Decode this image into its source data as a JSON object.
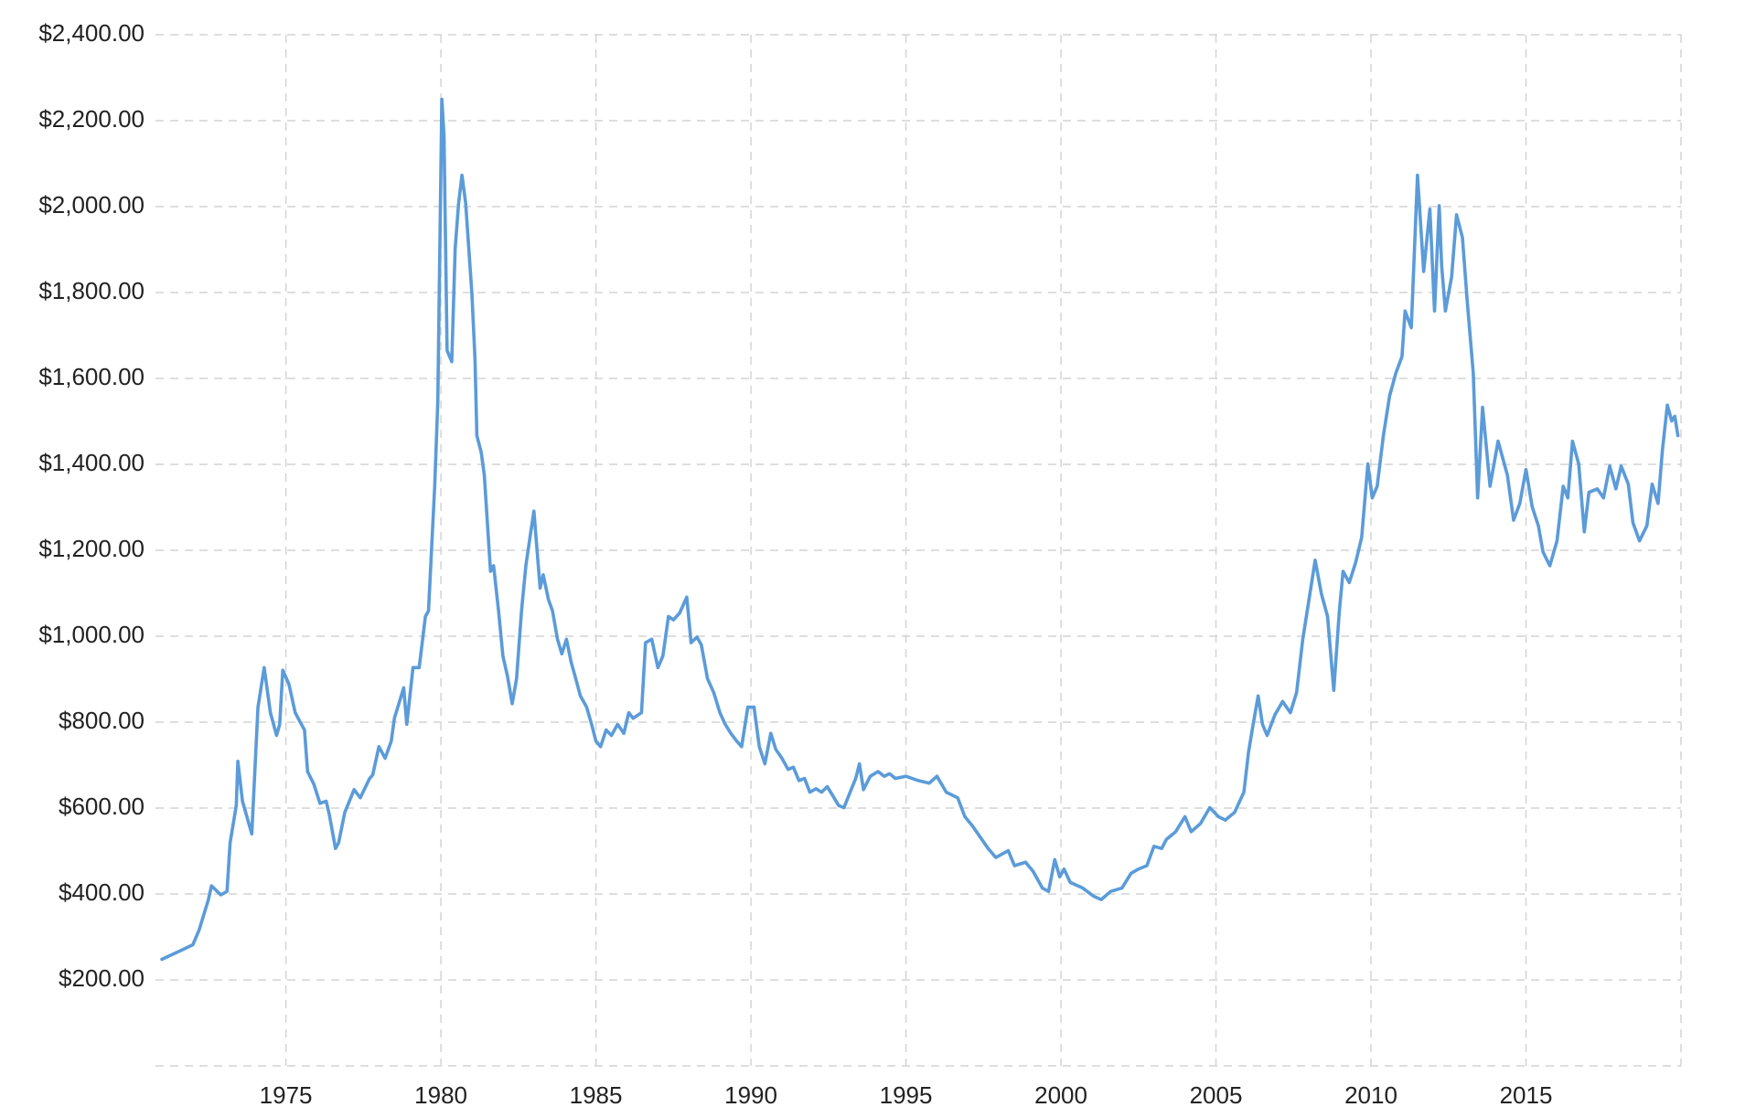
{
  "chart_data": {
    "type": "line",
    "color": "#5b9bd9",
    "grid": true,
    "xlim": [
      1971,
      2020
    ],
    "xticks": [
      1975,
      1980,
      1985,
      1990,
      1995,
      2000,
      2005,
      2010,
      2015
    ],
    "ylim": [
      0,
      2400
    ],
    "yticks": [
      {
        "value": 200,
        "label": "$200.00"
      },
      {
        "value": 400,
        "label": "$400.00"
      },
      {
        "value": 600,
        "label": "$600.00"
      },
      {
        "value": 800,
        "label": "$800.00"
      },
      {
        "value": 1000,
        "label": "$1,000.00"
      },
      {
        "value": 1200,
        "label": "$1,200.00"
      },
      {
        "value": 1400,
        "label": "$1,400.00"
      },
      {
        "value": 1600,
        "label": "$1,600.00"
      },
      {
        "value": 1800,
        "label": "$1,800.00"
      },
      {
        "value": 2000,
        "label": "$2,000.00"
      },
      {
        "value": 2200,
        "label": "$2,200.00"
      },
      {
        "value": 2400,
        "label": "$2,400.00"
      }
    ],
    "x": [
      1971.0,
      1971.6,
      1972.0,
      1972.2,
      1972.5,
      1972.6,
      1972.9,
      1973.1,
      1973.2,
      1973.4,
      1973.45,
      1973.6,
      1973.9,
      1974.1,
      1974.3,
      1974.5,
      1974.7,
      1974.8,
      1974.9,
      1975.1,
      1975.3,
      1975.5,
      1975.6,
      1975.7,
      1975.9,
      1976.1,
      1976.3,
      1976.4,
      1976.6,
      1976.7,
      1976.9,
      1977.2,
      1977.4,
      1977.7,
      1977.8,
      1978.0,
      1978.2,
      1978.4,
      1978.5,
      1978.8,
      1978.9,
      1979.1,
      1979.3,
      1979.5,
      1979.6,
      1979.8,
      1979.9,
      1980.03,
      1980.1,
      1980.2,
      1980.35,
      1980.46,
      1980.57,
      1980.68,
      1980.8,
      1981.0,
      1981.1,
      1981.16,
      1981.3,
      1981.4,
      1981.6,
      1981.7,
      1981.86,
      1982.0,
      1982.15,
      1982.3,
      1982.44,
      1982.6,
      1982.74,
      1982.9,
      1983.0,
      1983.2,
      1983.3,
      1983.47,
      1983.6,
      1983.76,
      1983.9,
      1984.05,
      1984.2,
      1984.35,
      1984.5,
      1984.7,
      1984.86,
      1985.0,
      1985.15,
      1985.33,
      1985.5,
      1985.7,
      1985.9,
      1986.06,
      1986.2,
      1986.47,
      1986.6,
      1986.8,
      1987.0,
      1987.16,
      1987.34,
      1987.5,
      1987.7,
      1987.93,
      1988.07,
      1988.26,
      1988.4,
      1988.6,
      1988.8,
      1989.0,
      1989.17,
      1989.35,
      1989.54,
      1989.7,
      1989.9,
      1990.1,
      1990.27,
      1990.45,
      1990.64,
      1990.8,
      1991.0,
      1991.2,
      1991.37,
      1991.55,
      1991.73,
      1991.9,
      1992.1,
      1992.28,
      1992.46,
      1992.64,
      1992.83,
      1993.0,
      1993.2,
      1993.38,
      1993.5,
      1993.63,
      1993.85,
      1994.1,
      1994.3,
      1994.47,
      1994.66,
      1995.0,
      1995.4,
      1995.75,
      1996.0,
      1996.3,
      1996.67,
      1996.9,
      1997.14,
      1997.4,
      1997.65,
      1997.9,
      1998.3,
      1998.5,
      1998.86,
      1999.1,
      1999.4,
      1999.6,
      1999.8,
      1999.96,
      2000.1,
      2000.3,
      2000.7,
      2001.05,
      2001.3,
      2001.6,
      2001.97,
      2002.26,
      2002.5,
      2002.77,
      2003.0,
      2003.25,
      2003.4,
      2003.7,
      2004.0,
      2004.2,
      2004.5,
      2004.8,
      2005.08,
      2005.3,
      2005.6,
      2005.9,
      2006.05,
      2006.2,
      2006.36,
      2006.5,
      2006.65,
      2006.9,
      2007.15,
      2007.4,
      2007.6,
      2007.8,
      2008.0,
      2008.2,
      2008.4,
      2008.6,
      2008.8,
      2008.98,
      2009.1,
      2009.3,
      2009.5,
      2009.7,
      2009.9,
      2010.04,
      2010.2,
      2010.4,
      2010.6,
      2010.8,
      2011.0,
      2011.1,
      2011.3,
      2011.5,
      2011.7,
      2011.9,
      2012.05,
      2012.2,
      2012.28,
      2012.4,
      2012.6,
      2012.76,
      2012.95,
      2013.1,
      2013.3,
      2013.44,
      2013.6,
      2013.84,
      2014.1,
      2014.4,
      2014.6,
      2014.8,
      2015.0,
      2015.2,
      2015.4,
      2015.55,
      2015.77,
      2016.0,
      2016.2,
      2016.35,
      2016.5,
      2016.7,
      2016.88,
      2017.03,
      2017.3,
      2017.5,
      2017.7,
      2017.9,
      2018.07,
      2018.3,
      2018.45,
      2018.66,
      2018.9,
      2019.07,
      2019.26,
      2019.4,
      2019.56,
      2019.7,
      2019.8,
      2019.9
    ],
    "values": [
      248,
      268,
      282,
      316,
      387,
      419,
      398,
      406,
      519,
      606,
      709,
      616,
      540,
      835,
      927,
      822,
      769,
      795,
      921,
      888,
      822,
      795,
      782,
      685,
      656,
      611,
      616,
      585,
      506,
      519,
      590,
      643,
      624,
      669,
      677,
      743,
      716,
      756,
      809,
      880,
      795,
      927,
      927,
      1046,
      1059,
      1349,
      1546,
      2250,
      2165,
      1665,
      1639,
      1902,
      2007,
      2073,
      2007,
      1797,
      1644,
      1467,
      1428,
      1375,
      1151,
      1164,
      1059,
      954,
      906,
      843,
      901,
      1059,
      1164,
      1243,
      1291,
      1112,
      1143,
      1085,
      1059,
      993,
      959,
      993,
      940,
      901,
      861,
      835,
      795,
      756,
      743,
      782,
      769,
      795,
      774,
      822,
      809,
      822,
      985,
      993,
      927,
      954,
      1046,
      1038,
      1054,
      1091,
      985,
      998,
      980,
      901,
      869,
      822,
      795,
      774,
      756,
      743,
      835,
      835,
      743,
      703,
      774,
      737,
      716,
      690,
      695,
      664,
      669,
      637,
      645,
      637,
      650,
      629,
      606,
      601,
      637,
      669,
      703,
      643,
      674,
      685,
      674,
      680,
      669,
      674,
      664,
      658,
      674,
      637,
      624,
      580,
      559,
      532,
      506,
      485,
      501,
      466,
      474,
      453,
      414,
      406,
      480,
      440,
      458,
      427,
      414,
      395,
      387,
      406,
      414,
      448,
      458,
      466,
      511,
      506,
      527,
      545,
      580,
      545,
      564,
      601,
      580,
      572,
      590,
      637,
      730,
      795,
      861,
      795,
      769,
      817,
      848,
      822,
      869,
      993,
      1085,
      1177,
      1099,
      1046,
      874,
      1059,
      1151,
      1125,
      1170,
      1230,
      1401,
      1322,
      1349,
      1467,
      1559,
      1612,
      1651,
      1757,
      1718,
      2073,
      1849,
      1994,
      1757,
      2002,
      1862,
      1757,
      1836,
      1981,
      1928,
      1784,
      1612,
      1322,
      1533,
      1349,
      1454,
      1375,
      1270,
      1309,
      1388,
      1301,
      1257,
      1196,
      1164,
      1222,
      1349,
      1322,
      1454,
      1401,
      1243,
      1335,
      1343,
      1322,
      1396,
      1343,
      1396,
      1354,
      1264,
      1222,
      1257,
      1354,
      1309,
      1433,
      1538,
      1501,
      1512,
      1467
    ]
  }
}
